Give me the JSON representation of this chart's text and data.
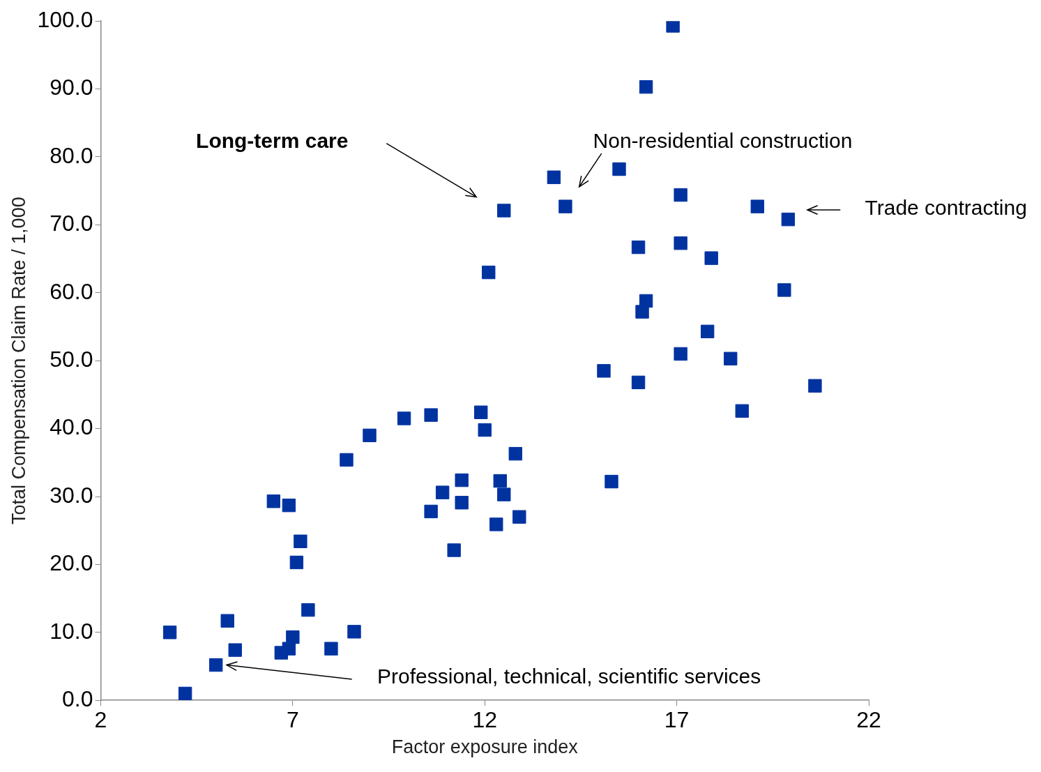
{
  "chart_data": {
    "type": "scatter",
    "xlabel": "Factor exposure index",
    "ylabel": "Total Compensation Claim Rate / 1,000",
    "x": [
      3.8,
      4.2,
      5.0,
      5.3,
      5.5,
      6.5,
      6.9,
      6.7,
      6.9,
      7.0,
      7.1,
      7.2,
      7.4,
      8.0,
      8.4,
      8.6,
      9.0,
      9.9,
      10.6,
      10.6,
      10.9,
      11.2,
      11.4,
      11.4,
      11.9,
      12.0,
      12.1,
      12.3,
      12.4,
      12.5,
      12.5,
      12.8,
      12.9,
      13.8,
      14.1,
      15.1,
      15.3,
      15.5,
      16.0,
      16.0,
      16.1,
      16.2,
      16.2,
      16.9,
      17.1,
      17.1,
      17.1,
      17.8,
      17.9,
      18.4,
      18.7,
      19.1,
      19.8,
      19.9,
      20.6
    ],
    "series": [
      {
        "color": "#0033a0",
        "values": [
          10.0,
          1.0,
          5.2,
          11.7,
          7.4,
          29.3,
          28.7,
          7.0,
          7.6,
          9.3,
          20.3,
          23.4,
          13.3,
          7.6,
          35.4,
          10.1,
          39.0,
          41.5,
          42.0,
          27.8,
          30.6,
          22.1,
          32.4,
          29.1,
          42.4,
          39.8,
          63.0,
          25.9,
          32.3,
          30.3,
          72.1,
          36.3,
          27.0,
          77.0,
          72.7,
          48.5,
          32.2,
          78.2,
          66.7,
          46.8,
          57.2,
          58.8,
          90.3,
          99.3,
          74.4,
          67.3,
          51.0,
          54.3,
          65.1,
          50.3,
          42.6,
          72.7,
          60.4,
          70.8,
          46.3
        ]
      }
    ],
    "marker": "square",
    "grid": false,
    "legend": false,
    "xlim": [
      2,
      22
    ],
    "xticks": [
      2,
      7,
      12,
      17,
      22
    ],
    "ylim": [
      0,
      100
    ],
    "yticks": [
      {
        "value": 0,
        "label": "0.0"
      },
      {
        "value": 10,
        "label": "10.0"
      },
      {
        "value": 20,
        "label": "20.0"
      },
      {
        "value": 30,
        "label": "30.0"
      },
      {
        "value": 40,
        "label": "40.0"
      },
      {
        "value": 50,
        "label": "50.0"
      },
      {
        "value": 60,
        "label": "60.0"
      },
      {
        "value": 70,
        "label": "70.0"
      },
      {
        "value": 80,
        "label": "80.0"
      },
      {
        "value": 90,
        "label": "90.0"
      },
      {
        "value": 100,
        "label": "100.0"
      }
    ],
    "annotations": [
      "Long-term care",
      "Non-residential construction",
      "Trade contracting",
      "Professional, technical, scientific services"
    ]
  }
}
